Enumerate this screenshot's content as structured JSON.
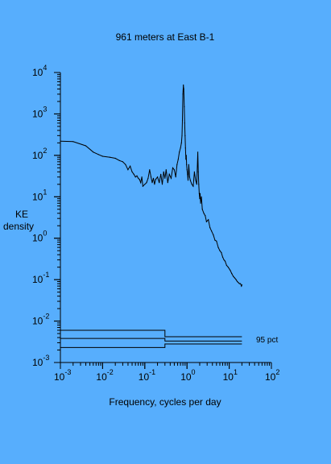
{
  "colors": {
    "background": "#57aefd",
    "ink": "#000000"
  },
  "chart_data": {
    "type": "line",
    "title": "961 meters at East B-1",
    "xlabel": "Frequency, cycles per day",
    "ylabel_lines": [
      "KE",
      "density"
    ],
    "x_scale": "log",
    "y_scale": "log",
    "xlim": [
      0.001,
      100
    ],
    "ylim": [
      0.001,
      10000
    ],
    "x_ticks": [
      {
        "value": 0.001,
        "base": "10",
        "exp": "-3"
      },
      {
        "value": 0.01,
        "base": "10",
        "exp": "-2"
      },
      {
        "value": 0.1,
        "base": "10",
        "exp": "-1"
      },
      {
        "value": 1,
        "base": "10",
        "exp": "0"
      },
      {
        "value": 10,
        "base": "10",
        "exp": "1"
      },
      {
        "value": 100,
        "base": "10",
        "exp": "2"
      }
    ],
    "y_ticks": [
      {
        "value": 0.001,
        "base": "10",
        "exp": "-3"
      },
      {
        "value": 0.01,
        "base": "10",
        "exp": "-2"
      },
      {
        "value": 0.1,
        "base": "10",
        "exp": "-1"
      },
      {
        "value": 1,
        "base": "10",
        "exp": "0"
      },
      {
        "value": 10,
        "base": "10",
        "exp": "1"
      },
      {
        "value": 100,
        "base": "10",
        "exp": "2"
      },
      {
        "value": 1000,
        "base": "10",
        "exp": "3"
      },
      {
        "value": 10000,
        "base": "10",
        "exp": "4"
      }
    ],
    "series": [
      {
        "x": [
          0.001,
          0.002,
          0.004,
          0.006,
          0.008,
          0.01,
          0.015,
          0.02,
          0.025,
          0.03,
          0.035,
          0.04,
          0.045,
          0.05,
          0.055,
          0.06,
          0.065,
          0.07,
          0.075,
          0.08,
          0.085,
          0.09,
          0.1,
          0.11,
          0.12,
          0.13,
          0.14,
          0.15,
          0.16,
          0.17,
          0.18,
          0.2,
          0.22,
          0.24,
          0.26,
          0.28,
          0.3,
          0.32,
          0.35,
          0.38,
          0.42,
          0.46,
          0.5,
          0.54,
          0.58,
          0.62,
          0.66,
          0.7,
          0.74,
          0.76,
          0.78,
          0.8,
          0.82,
          0.84,
          0.86,
          0.88,
          0.9,
          0.92,
          0.94,
          0.96,
          0.98,
          1.0,
          1.03,
          1.06,
          1.1,
          1.15,
          1.2,
          1.3,
          1.4,
          1.5,
          1.6,
          1.7,
          1.8,
          1.85,
          1.9,
          1.95,
          2.0,
          2.05,
          2.1,
          2.2,
          2.3,
          2.5,
          2.7,
          2.9,
          3.2,
          3.5,
          3.8,
          4.2,
          4.6,
          5.0,
          5.5,
          6.0,
          6.5,
          7.0,
          7.5,
          8.0,
          8.7,
          9.5,
          10.5,
          11.5,
          12.5,
          13.5,
          14.5,
          15.5,
          16.5,
          17.5,
          18.5,
          19.5,
          20.0
        ],
        "y": [
          220,
          215,
          170,
          120,
          105,
          95,
          90,
          85,
          75,
          70,
          60,
          45,
          55,
          40,
          35,
          30,
          32,
          28,
          26,
          22,
          30,
          18,
          20,
          22,
          28,
          45,
          30,
          22,
          28,
          20,
          26,
          30,
          22,
          35,
          20,
          40,
          28,
          45,
          22,
          35,
          28,
          50,
          45,
          30,
          60,
          80,
          120,
          150,
          200,
          300,
          700,
          3000,
          5000,
          4000,
          1500,
          600,
          300,
          150,
          80,
          100,
          60,
          45,
          35,
          25,
          60,
          30,
          25,
          20,
          18,
          40,
          25,
          20,
          120,
          40,
          20,
          12,
          9,
          12,
          7,
          10,
          5,
          4,
          3.5,
          2.5,
          2.8,
          1.8,
          1.5,
          1.2,
          0.9,
          0.85,
          0.6,
          0.5,
          0.45,
          0.35,
          0.3,
          0.28,
          0.22,
          0.2,
          0.17,
          0.14,
          0.12,
          0.11,
          0.1,
          0.09,
          0.085,
          0.08,
          0.08,
          0.07,
          0.075
        ]
      }
    ],
    "confidence_band": {
      "label": "95 pct",
      "segments": [
        {
          "x_start": 0.001,
          "x_break": 0.3,
          "x_end": 20,
          "y_upper": [
            0.006,
            0.0042
          ],
          "y_mid": [
            0.0038,
            0.0033
          ],
          "y_lower": [
            0.0023,
            0.0028
          ]
        }
      ]
    },
    "grid": false,
    "legend": "none"
  }
}
